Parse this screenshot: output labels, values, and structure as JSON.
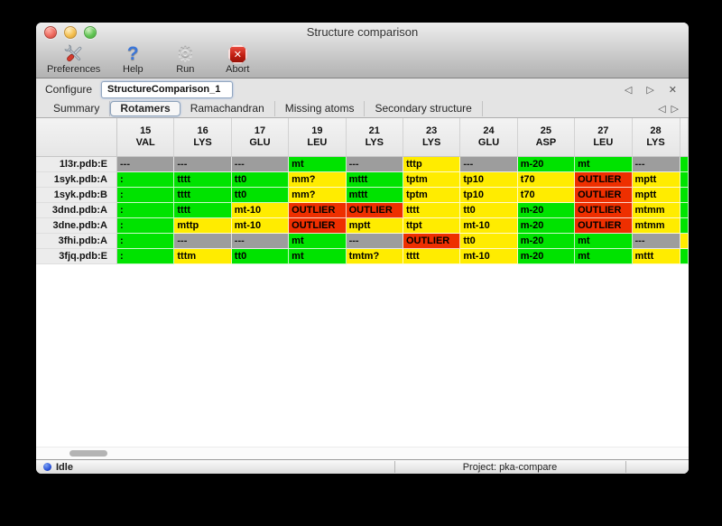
{
  "window": {
    "title": "Structure comparison"
  },
  "colors": {
    "good": "#00e300",
    "warn": "#ffec00",
    "outlier": "#ee2f00",
    "na": "#9d9d9d",
    "close": "#ee6a5f",
    "minimize": "#f5bf4f",
    "zoom": "#61c554",
    "status_dot": "#2a52d8"
  },
  "icons": {
    "prev_glyph": "◁",
    "next_glyph": "▷",
    "close_glyph": "✕",
    "help_glyph": "?",
    "run_glyph": "⚙",
    "abort_glyph": "✕"
  },
  "toolbar": {
    "preferences_label": "Preferences",
    "help_label": "Help",
    "run_label": "Run",
    "abort_label": "Abort"
  },
  "configure": {
    "label": "Configure",
    "value": "StructureComparison_1"
  },
  "tabs": {
    "items": [
      "Summary",
      "Rotamers",
      "Ramachandran",
      "Missing atoms",
      "Secondary structure"
    ],
    "selected_index": 1
  },
  "table": {
    "columns": [
      {
        "num": "15",
        "res": "VAL"
      },
      {
        "num": "16",
        "res": "LYS"
      },
      {
        "num": "17",
        "res": "GLU"
      },
      {
        "num": "19",
        "res": "LEU"
      },
      {
        "num": "21",
        "res": "LYS"
      },
      {
        "num": "23",
        "res": "LYS"
      },
      {
        "num": "24",
        "res": "GLU"
      },
      {
        "num": "25",
        "res": "ASP"
      },
      {
        "num": "27",
        "res": "LEU"
      },
      {
        "num": "28",
        "res": "LYS"
      }
    ],
    "rows": [
      {
        "label": "1l3r.pdb:E",
        "edge": "good",
        "cells": [
          {
            "text": "---",
            "status": "na"
          },
          {
            "text": "---",
            "status": "na"
          },
          {
            "text": "---",
            "status": "na"
          },
          {
            "text": "mt",
            "status": "good"
          },
          {
            "text": "---",
            "status": "na"
          },
          {
            "text": "tttp",
            "status": "warn"
          },
          {
            "text": "---",
            "status": "na"
          },
          {
            "text": "m-20",
            "status": "good"
          },
          {
            "text": "mt",
            "status": "good"
          },
          {
            "text": "---",
            "status": "na"
          }
        ]
      },
      {
        "label": "1syk.pdb:A",
        "edge": "good",
        "cells": [
          {
            "text": ":",
            "status": "good"
          },
          {
            "text": "tttt",
            "status": "good"
          },
          {
            "text": "tt0",
            "status": "good"
          },
          {
            "text": "mm?",
            "status": "warn"
          },
          {
            "text": "mttt",
            "status": "good"
          },
          {
            "text": "tptm",
            "status": "warn"
          },
          {
            "text": "tp10",
            "status": "warn"
          },
          {
            "text": "t70",
            "status": "warn"
          },
          {
            "text": "OUTLIER",
            "status": "outlier"
          },
          {
            "text": "mptt",
            "status": "warn"
          }
        ]
      },
      {
        "label": "1syk.pdb:B",
        "edge": "good",
        "cells": [
          {
            "text": ":",
            "status": "good"
          },
          {
            "text": "tttt",
            "status": "good"
          },
          {
            "text": "tt0",
            "status": "good"
          },
          {
            "text": "mm?",
            "status": "warn"
          },
          {
            "text": "mttt",
            "status": "good"
          },
          {
            "text": "tptm",
            "status": "warn"
          },
          {
            "text": "tp10",
            "status": "warn"
          },
          {
            "text": "t70",
            "status": "warn"
          },
          {
            "text": "OUTLIER",
            "status": "outlier"
          },
          {
            "text": "mptt",
            "status": "warn"
          }
        ]
      },
      {
        "label": "3dnd.pdb:A",
        "edge": "good",
        "cells": [
          {
            "text": ":",
            "status": "good"
          },
          {
            "text": "tttt",
            "status": "good"
          },
          {
            "text": "mt-10",
            "status": "warn"
          },
          {
            "text": "OUTLIER",
            "status": "outlier"
          },
          {
            "text": "OUTLIER",
            "status": "outlier"
          },
          {
            "text": "tttt",
            "status": "warn"
          },
          {
            "text": "tt0",
            "status": "warn"
          },
          {
            "text": "m-20",
            "status": "good"
          },
          {
            "text": "OUTLIER",
            "status": "outlier"
          },
          {
            "text": "mtmm",
            "status": "warn"
          }
        ]
      },
      {
        "label": "3dne.pdb:A",
        "edge": "good",
        "cells": [
          {
            "text": ":",
            "status": "good"
          },
          {
            "text": "mttp",
            "status": "warn"
          },
          {
            "text": "mt-10",
            "status": "warn"
          },
          {
            "text": "OUTLIER",
            "status": "outlier"
          },
          {
            "text": "mptt",
            "status": "warn"
          },
          {
            "text": "ttpt",
            "status": "warn"
          },
          {
            "text": "mt-10",
            "status": "warn"
          },
          {
            "text": "m-20",
            "status": "good"
          },
          {
            "text": "OUTLIER",
            "status": "outlier"
          },
          {
            "text": "mtmm",
            "status": "warn"
          }
        ]
      },
      {
        "label": "3fhi.pdb:A",
        "edge": "warn",
        "cells": [
          {
            "text": ":",
            "status": "good"
          },
          {
            "text": "---",
            "status": "na"
          },
          {
            "text": "---",
            "status": "na"
          },
          {
            "text": "mt",
            "status": "good"
          },
          {
            "text": "---",
            "status": "na"
          },
          {
            "text": "OUTLIER",
            "status": "outlier"
          },
          {
            "text": "tt0",
            "status": "warn"
          },
          {
            "text": "m-20",
            "status": "good"
          },
          {
            "text": "mt",
            "status": "good"
          },
          {
            "text": "---",
            "status": "na"
          }
        ]
      },
      {
        "label": "3fjq.pdb:E",
        "edge": "good",
        "cells": [
          {
            "text": ":",
            "status": "good"
          },
          {
            "text": "tttm",
            "status": "warn"
          },
          {
            "text": "tt0",
            "status": "good"
          },
          {
            "text": "mt",
            "status": "good"
          },
          {
            "text": "tmtm?",
            "status": "warn"
          },
          {
            "text": "tttt",
            "status": "warn"
          },
          {
            "text": "mt-10",
            "status": "warn"
          },
          {
            "text": "m-20",
            "status": "good"
          },
          {
            "text": "mt",
            "status": "good"
          },
          {
            "text": "mttt",
            "status": "warn"
          }
        ]
      }
    ]
  },
  "statusbar": {
    "status": "Idle",
    "project": "Project: pka-compare"
  }
}
